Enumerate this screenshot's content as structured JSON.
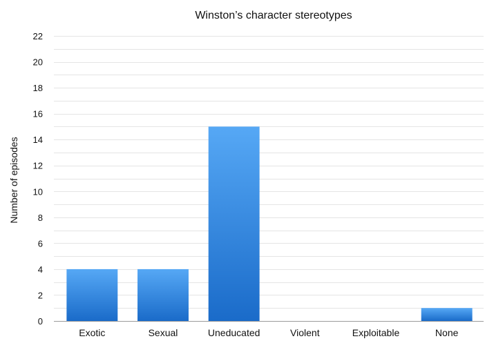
{
  "chart_data": {
    "type": "bar",
    "title": "Winston’s character stereotypes",
    "xlabel": "",
    "ylabel": "Number of episodes",
    "categories": [
      "Exotic",
      "Sexual",
      "Uneducated",
      "Violent",
      "Exploitable",
      "None"
    ],
    "values": [
      4,
      4,
      15,
      0,
      0,
      1
    ],
    "ylim": [
      0,
      22
    ],
    "yticks": [
      0,
      2,
      4,
      6,
      8,
      10,
      12,
      14,
      16,
      18,
      20,
      22
    ],
    "grid": true,
    "legend": "none",
    "colors": {
      "bar_top": "#56a8f5",
      "bar_bottom": "#1a6bc9"
    }
  }
}
